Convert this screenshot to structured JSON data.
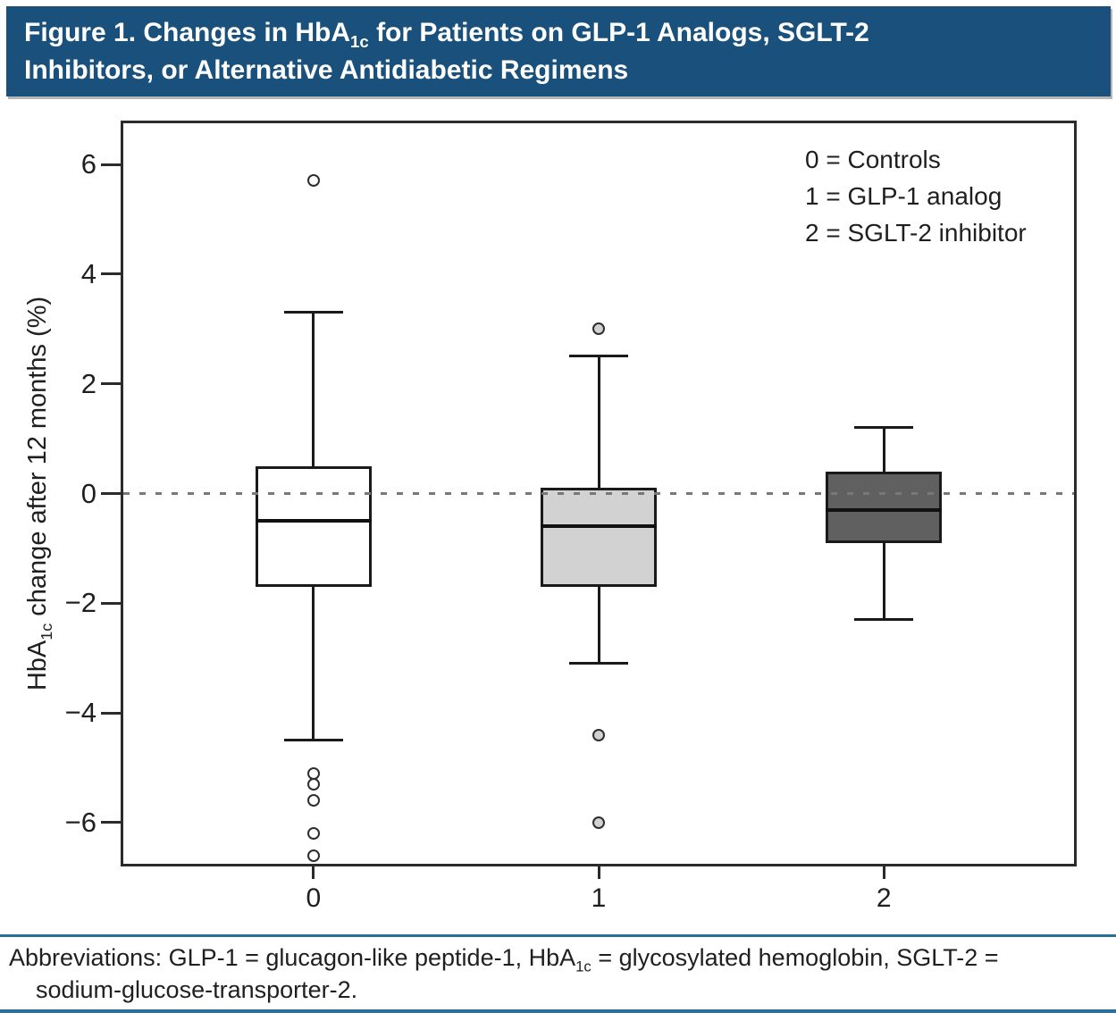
{
  "title": {
    "line1_prefix": "Figure 1. Changes in HbA",
    "line1_sub": "1c",
    "line1_suffix": " for Patients on GLP-1 Analogs, SGLT-2",
    "line2": "Inhibitors, or Alternative Antidiabetic Regimens"
  },
  "y_axis": {
    "label_prefix": "HbA",
    "label_sub": "1c",
    "label_suffix": " change after 12 months (%)"
  },
  "legend": {
    "items": [
      "0 = Controls",
      "1 = GLP-1 analog",
      "2 = SGLT-2 inhibitor"
    ]
  },
  "footnote": {
    "line1_prefix": "Abbreviations: GLP-1 = glucagon-like peptide-1, HbA",
    "line1_sub": "1c",
    "line1_suffix": " = glycosylated hemoglobin, SGLT-2 =",
    "line2": "sodium-glucose-transporter-2."
  },
  "colors": {
    "title_bar": "#1a517c",
    "rule_blue": "#2b6e99",
    "box_border": "#1a1a1a",
    "zero_line": "#787878",
    "controls_fill": "#ffffff",
    "glp1_fill": "#d2d2d2",
    "sglt2_fill": "#606060"
  },
  "chart_data": {
    "type": "boxplot",
    "title": "Figure 1. Changes in HbA1c for Patients on GLP-1 Analogs, SGLT-2 Inhibitors, or Alternative Antidiabetic Regimens",
    "ylabel": "HbA1c change after 12 months (%)",
    "xlabel": "",
    "ylim": [
      -6.75,
      6.75
    ],
    "yticks": [
      6,
      4,
      2,
      0,
      -2,
      -4,
      -6
    ],
    "ytick_labels": [
      "6",
      "4",
      "2",
      "0",
      "−2",
      "−4",
      "−6"
    ],
    "categories": [
      "0",
      "1",
      "2"
    ],
    "zero_reference_line": 0,
    "grid": false,
    "legend_position": "top-right",
    "legend_entries": [
      "0 = Controls",
      "1 = GLP-1 analog",
      "2 = SGLT-2 inhibitor"
    ],
    "series": [
      {
        "name": "Controls",
        "category": "0",
        "whisker_low": -4.5,
        "q1": -1.7,
        "median": -0.5,
        "q3": 0.5,
        "whisker_high": 3.3,
        "outliers": [
          5.7,
          -5.1,
          -5.3,
          -5.6,
          -6.2,
          -6.6
        ],
        "fill": "#ffffff"
      },
      {
        "name": "GLP-1 analog",
        "category": "1",
        "whisker_low": -3.1,
        "q1": -1.7,
        "median": -0.6,
        "q3": 0.1,
        "whisker_high": 2.5,
        "outliers": [
          3.0,
          -4.4,
          -6.0
        ],
        "fill": "#d2d2d2"
      },
      {
        "name": "SGLT-2 inhibitor",
        "category": "2",
        "whisker_low": -2.3,
        "q1": -0.9,
        "median": -0.3,
        "q3": 0.4,
        "whisker_high": 1.2,
        "outliers": [],
        "fill": "#606060"
      }
    ]
  }
}
